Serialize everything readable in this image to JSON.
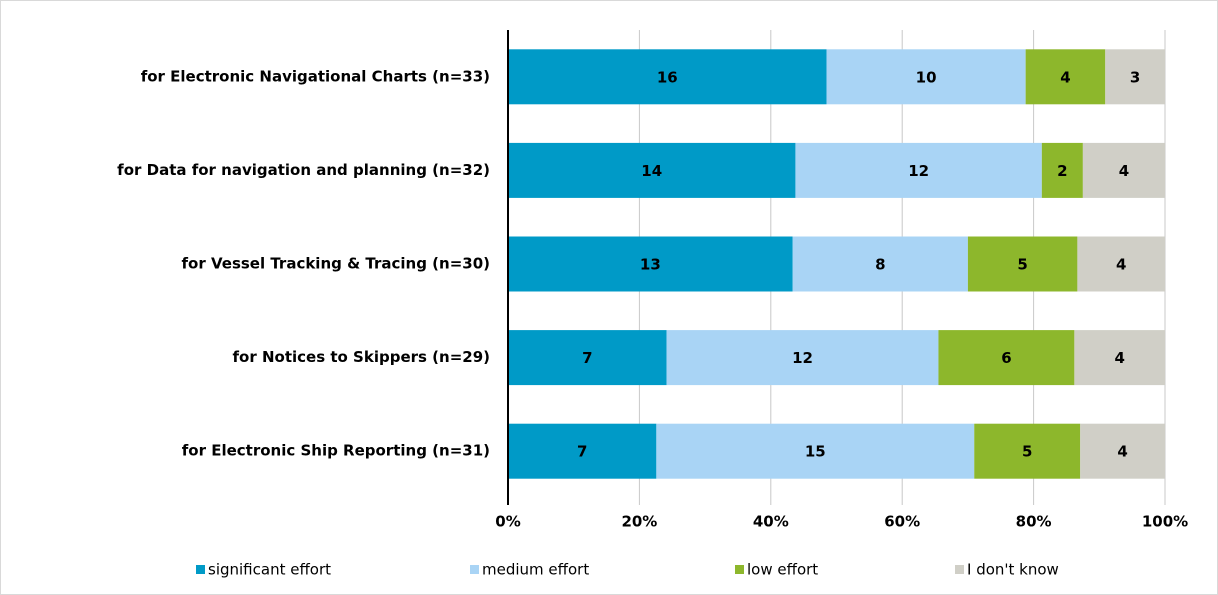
{
  "chart_data": {
    "type": "bar",
    "orientation": "horizontal",
    "stacking": "percent",
    "categories": [
      "for Electronic Navigational Charts  (n=33)",
      "for Data for navigation and planning (n=32)",
      "for Vessel Tracking & Tracing (n=30)",
      "for Notices to Skippers (n=29)",
      "for Electronic Ship Reporting (n=31)"
    ],
    "series": [
      {
        "name": "significant effort",
        "color": "#009ac7",
        "values": [
          16,
          14,
          13,
          7,
          7
        ]
      },
      {
        "name": "medium effort",
        "color": "#a9d4f5",
        "values": [
          10,
          12,
          8,
          12,
          15
        ]
      },
      {
        "name": "low effort",
        "color": "#8db72c",
        "values": [
          4,
          2,
          5,
          6,
          5
        ]
      },
      {
        "name": "I don't know",
        "color": "#d0cfc7",
        "values": [
          3,
          4,
          4,
          4,
          4
        ]
      }
    ],
    "xlim": [
      0,
      100
    ],
    "xticks": [
      {
        "value": 0,
        "label": "0%"
      },
      {
        "value": 20,
        "label": "20%"
      },
      {
        "value": 40,
        "label": "40%"
      },
      {
        "value": 60,
        "label": "60%"
      },
      {
        "value": 80,
        "label": "80%"
      },
      {
        "value": 100,
        "label": "100%"
      }
    ],
    "grid": true,
    "legend": "bottom"
  }
}
